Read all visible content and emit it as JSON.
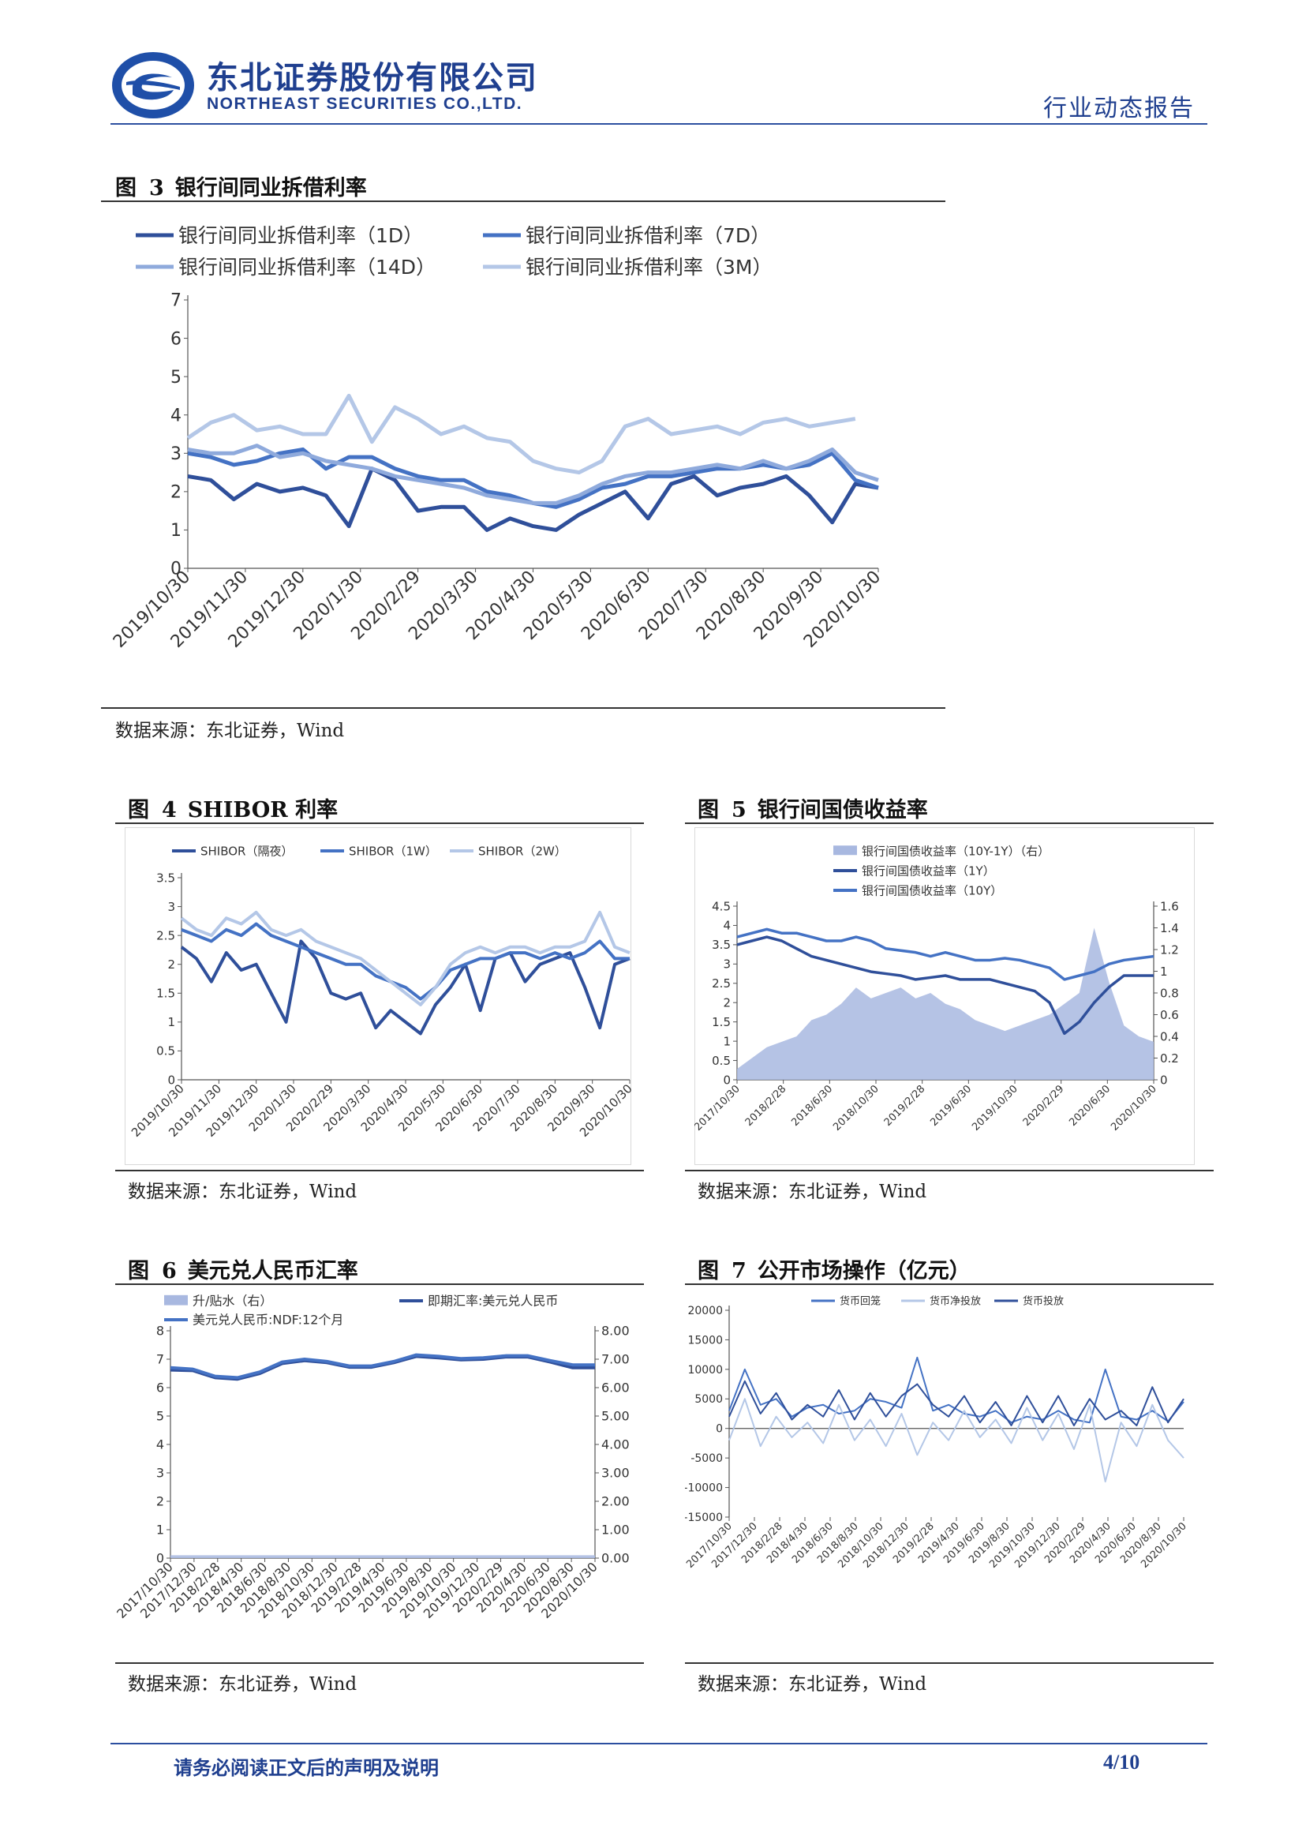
{
  "header": {
    "company_cn": "东北证券股份有限公司",
    "company_en": "NORTHEAST SECURITIES CO.,LTD.",
    "report_type": "行业动态报告"
  },
  "figures": [
    {
      "id": "fig3",
      "label": "图",
      "num": "3",
      "title": "银行间同业拆借利率",
      "source": "数据来源：东北证券，Wind"
    },
    {
      "id": "fig4",
      "label": "图",
      "num": "4",
      "title": "SHIBOR 利率",
      "source": "数据来源：东北证券，Wind"
    },
    {
      "id": "fig5",
      "label": "图",
      "num": "5",
      "title": "银行间国债收益率",
      "source": "数据来源：东北证券，Wind"
    },
    {
      "id": "fig6",
      "label": "图",
      "num": "6",
      "title": "美元兑人民币汇率",
      "source": "数据来源：东北证券，Wind"
    },
    {
      "id": "fig7",
      "label": "图",
      "num": "7",
      "title": "公开市场操作（亿元）",
      "source": "数据来源：东北证券，Wind"
    }
  ],
  "footer": {
    "disclaimer": "请务必阅读正文后的声明及说明",
    "page": "4/10"
  },
  "colors": {
    "dark": "#2f4f9a",
    "mid": "#4472c4",
    "light": "#8faadc",
    "pale": "#b4c7e7",
    "area": "#a8b8e0"
  },
  "chart_data": [
    {
      "id": "fig3",
      "type": "line",
      "x_ticks": [
        "2019/10/30",
        "2019/11/30",
        "2019/12/30",
        "2020/1/30",
        "2020/2/29",
        "2020/3/30",
        "2020/4/30",
        "2020/5/30",
        "2020/6/30",
        "2020/7/30",
        "2020/8/30",
        "2020/9/30",
        "2020/10/30"
      ],
      "y_ticks": [
        "0",
        "1",
        "2",
        "3",
        "4",
        "5",
        "6",
        "7"
      ],
      "ylim": [
        0,
        7
      ],
      "legend": "top",
      "series": [
        {
          "name": "银行间同业拆借利率（1D）",
          "color": "#2f4f9a",
          "values": [
            2.4,
            2.3,
            1.8,
            2.2,
            2.0,
            2.1,
            1.9,
            1.1,
            2.6,
            2.3,
            1.5,
            1.6,
            1.6,
            1.0,
            1.3,
            1.1,
            1.0,
            1.4,
            1.7,
            2.0,
            1.3,
            2.2,
            2.4,
            1.9,
            2.1,
            2.2,
            2.4,
            1.9,
            1.2,
            2.2,
            2.1
          ]
        },
        {
          "name": "银行间同业拆借利率（7D）",
          "color": "#4472c4",
          "values": [
            3.0,
            2.9,
            2.7,
            2.8,
            3.0,
            3.1,
            2.6,
            2.9,
            2.9,
            2.6,
            2.4,
            2.3,
            2.3,
            2.0,
            1.9,
            1.7,
            1.6,
            1.8,
            2.1,
            2.2,
            2.4,
            2.4,
            2.5,
            2.6,
            2.6,
            2.7,
            2.6,
            2.7,
            3.0,
            2.3,
            2.1
          ]
        },
        {
          "name": "银行间同业拆借利率（14D）",
          "color": "#8faadc",
          "values": [
            3.1,
            3.0,
            3.0,
            3.2,
            2.9,
            3.0,
            2.8,
            2.7,
            2.6,
            2.4,
            2.3,
            2.2,
            2.1,
            1.9,
            1.8,
            1.7,
            1.7,
            1.9,
            2.2,
            2.4,
            2.5,
            2.5,
            2.6,
            2.7,
            2.6,
            2.8,
            2.6,
            2.8,
            3.1,
            2.5,
            2.3
          ]
        },
        {
          "name": "银行间同业拆借利率（3M）",
          "color": "#b4c7e7",
          "values": [
            3.4,
            3.8,
            4.0,
            3.6,
            3.7,
            3.5,
            3.5,
            4.5,
            3.3,
            4.2,
            3.9,
            3.5,
            3.7,
            3.4,
            3.3,
            2.8,
            2.6,
            2.5,
            2.8,
            3.7,
            3.9,
            3.5,
            3.6,
            3.7,
            3.5,
            3.8,
            3.9,
            3.7,
            3.8,
            3.9,
            null
          ]
        }
      ]
    },
    {
      "id": "fig4",
      "type": "line",
      "x_ticks": [
        "2019/10/30",
        "2019/11/30",
        "2019/12/30",
        "2020/1/30",
        "2020/2/29",
        "2020/3/30",
        "2020/4/30",
        "2020/5/30",
        "2020/6/30",
        "2020/7/30",
        "2020/8/30",
        "2020/9/30",
        "2020/10/30"
      ],
      "y_ticks": [
        "0",
        "0.5",
        "1",
        "1.5",
        "2",
        "2.5",
        "3",
        "3.5"
      ],
      "ylim": [
        0,
        3.5
      ],
      "legend": "top",
      "series": [
        {
          "name": "SHIBOR（隔夜）",
          "color": "#2f4f9a",
          "values": [
            2.3,
            2.1,
            1.7,
            2.2,
            1.9,
            2.0,
            1.5,
            1.0,
            2.4,
            2.1,
            1.5,
            1.4,
            1.5,
            0.9,
            1.2,
            1.0,
            0.8,
            1.3,
            1.6,
            2.0,
            1.2,
            2.1,
            2.2,
            1.7,
            2.0,
            2.1,
            2.2,
            1.6,
            0.9,
            2.0,
            2.1
          ]
        },
        {
          "name": "SHIBOR（1W）",
          "color": "#4472c4",
          "values": [
            2.6,
            2.5,
            2.4,
            2.6,
            2.5,
            2.7,
            2.5,
            2.4,
            2.3,
            2.2,
            2.1,
            2.0,
            2.0,
            1.8,
            1.7,
            1.6,
            1.4,
            1.6,
            1.9,
            2.0,
            2.1,
            2.1,
            2.2,
            2.2,
            2.1,
            2.2,
            2.1,
            2.2,
            2.4,
            2.1,
            2.1
          ]
        },
        {
          "name": "SHIBOR（2W）",
          "color": "#b4c7e7",
          "values": [
            2.8,
            2.6,
            2.5,
            2.8,
            2.7,
            2.9,
            2.6,
            2.5,
            2.6,
            2.4,
            2.3,
            2.2,
            2.1,
            1.9,
            1.7,
            1.5,
            1.3,
            1.6,
            2.0,
            2.2,
            2.3,
            2.2,
            2.3,
            2.3,
            2.2,
            2.3,
            2.3,
            2.4,
            2.9,
            2.3,
            2.2
          ]
        }
      ]
    },
    {
      "id": "fig5",
      "type": "line+area",
      "x_ticks": [
        "2017/10/30",
        "2018/2/28",
        "2018/6/30",
        "2018/10/30",
        "2019/2/28",
        "2019/6/30",
        "2019/10/30",
        "2020/2/29",
        "2020/6/30",
        "2020/10/30"
      ],
      "y_ticks": [
        "0",
        "0.5",
        "1",
        "1.5",
        "2",
        "2.5",
        "3",
        "3.5",
        "4",
        "4.5"
      ],
      "y2_ticks": [
        "0",
        "0.2",
        "0.4",
        "0.6",
        "0.8",
        "1",
        "1.2",
        "1.4",
        "1.6"
      ],
      "ylim": [
        0,
        4.5
      ],
      "y2lim": [
        0,
        1.6
      ],
      "legend": "top",
      "series": [
        {
          "name": "银行间国债收益率（10Y-1Y）（右）",
          "type": "area",
          "axis": "right",
          "color": "#a8b8e0",
          "values": [
            0.1,
            0.2,
            0.3,
            0.35,
            0.4,
            0.55,
            0.6,
            0.7,
            0.85,
            0.75,
            0.8,
            0.85,
            0.75,
            0.8,
            0.7,
            0.65,
            0.55,
            0.5,
            0.45,
            0.5,
            0.55,
            0.6,
            0.7,
            0.8,
            1.4,
            0.9,
            0.5,
            0.4,
            0.35
          ]
        },
        {
          "name": "银行间国债收益率（1Y）",
          "type": "line",
          "axis": "left",
          "color": "#2f4f9a",
          "values": [
            3.5,
            3.6,
            3.7,
            3.6,
            3.4,
            3.2,
            3.1,
            3.0,
            2.9,
            2.8,
            2.75,
            2.7,
            2.6,
            2.65,
            2.7,
            2.6,
            2.6,
            2.6,
            2.5,
            2.4,
            2.3,
            2.0,
            1.2,
            1.5,
            2.0,
            2.4,
            2.7,
            2.7,
            2.7
          ]
        },
        {
          "name": "银行间国债收益率（10Y）",
          "type": "line",
          "axis": "left",
          "color": "#4472c4",
          "values": [
            3.7,
            3.8,
            3.9,
            3.8,
            3.8,
            3.7,
            3.6,
            3.6,
            3.7,
            3.6,
            3.4,
            3.35,
            3.3,
            3.2,
            3.3,
            3.2,
            3.1,
            3.1,
            3.15,
            3.1,
            3.0,
            2.9,
            2.6,
            2.7,
            2.8,
            3.0,
            3.1,
            3.15,
            3.2
          ]
        }
      ]
    },
    {
      "id": "fig6",
      "type": "line+area",
      "x_ticks": [
        "2017/10/30",
        "2017/12/30",
        "2018/2/28",
        "2018/4/30",
        "2018/6/30",
        "2018/8/30",
        "2018/10/30",
        "2018/12/30",
        "2019/2/28",
        "2019/4/30",
        "2019/6/30",
        "2019/8/30",
        "2019/10/30",
        "2019/12/30",
        "2020/2/29",
        "2020/4/30",
        "2020/6/30",
        "2020/8/30",
        "2020/10/30"
      ],
      "y_ticks": [
        "0",
        "1",
        "2",
        "3",
        "4",
        "5",
        "6",
        "7",
        "8"
      ],
      "y2_ticks": [
        "0.00",
        "1.00",
        "2.00",
        "3.00",
        "4.00",
        "5.00",
        "6.00",
        "7.00",
        "8.00"
      ],
      "ylim": [
        0,
        8
      ],
      "y2lim": [
        0,
        8
      ],
      "legend": "top",
      "series": [
        {
          "name": "升/贴水（右）",
          "type": "area",
          "axis": "right",
          "color": "#a8b8e0",
          "values": [
            0.1,
            0.1,
            0.1,
            0.1,
            0.1,
            0.1,
            0.1,
            0.1,
            0.1,
            0.1,
            0.1,
            0.1,
            0.1,
            0.1,
            0.1,
            0.1,
            0.1,
            0.1,
            0.1,
            0.1
          ]
        },
        {
          "name": "即期汇率:美元兑人民币",
          "type": "line",
          "axis": "left",
          "color": "#2f4f9a",
          "values": [
            6.62,
            6.6,
            6.35,
            6.3,
            6.5,
            6.85,
            6.95,
            6.88,
            6.72,
            6.72,
            6.88,
            7.1,
            7.05,
            6.98,
            7.0,
            7.08,
            7.08,
            6.9,
            6.7,
            6.7
          ]
        },
        {
          "name": "美元兑人民币:NDF:12个月",
          "type": "line",
          "axis": "left",
          "color": "#4472c4",
          "values": [
            6.7,
            6.65,
            6.4,
            6.35,
            6.55,
            6.9,
            7.0,
            6.92,
            6.76,
            6.76,
            6.92,
            7.15,
            7.1,
            7.02,
            7.05,
            7.12,
            7.12,
            6.95,
            6.8,
            6.8
          ]
        }
      ]
    },
    {
      "id": "fig7",
      "type": "line",
      "x_ticks": [
        "2017/10/30",
        "2017/12/30",
        "2018/2/28",
        "2018/4/30",
        "2018/6/30",
        "2018/8/30",
        "2018/10/30",
        "2018/12/30",
        "2019/2/28",
        "2019/4/30",
        "2019/6/30",
        "2019/8/30",
        "2019/10/30",
        "2019/12/30",
        "2020/2/29",
        "2020/4/30",
        "2020/6/30",
        "2020/8/30",
        "2020/10/30"
      ],
      "y_ticks": [
        "-15000",
        "-10000",
        "-5000",
        "0",
        "5000",
        "10000",
        "15000",
        "20000"
      ],
      "ylim": [
        -15000,
        20000
      ],
      "legend": "top",
      "series": [
        {
          "name": "货币回笼",
          "color": "#4472c4",
          "values": [
            3000,
            10000,
            4000,
            5000,
            2000,
            3500,
            4000,
            2500,
            3000,
            5000,
            4500,
            3500,
            12000,
            3000,
            4000,
            2500,
            2000,
            3000,
            1000,
            2000,
            1500,
            3000,
            1500,
            1000,
            10000,
            2000,
            1500,
            3000,
            1200,
            4500
          ]
        },
        {
          "name": "货币净投放",
          "color": "#b4c7e7",
          "values": [
            -2000,
            5000,
            -3000,
            2000,
            -1500,
            1000,
            -2500,
            4000,
            -2000,
            1500,
            -3000,
            2500,
            -4500,
            1000,
            -2000,
            3000,
            -1500,
            1500,
            -2500,
            3500,
            -2000,
            2500,
            -3500,
            4000,
            -9000,
            1000,
            -3000,
            4000,
            -2000,
            -5000
          ]
        },
        {
          "name": "货币投放",
          "color": "#2f4f9a",
          "values": [
            2000,
            8000,
            2500,
            6000,
            1500,
            4000,
            2000,
            6500,
            1500,
            6000,
            2000,
            5500,
            7500,
            4000,
            2000,
            5500,
            1000,
            4500,
            500,
            5500,
            1000,
            5500,
            500,
            5000,
            1500,
            3000,
            500,
            7000,
            1000,
            5000
          ]
        }
      ]
    }
  ]
}
